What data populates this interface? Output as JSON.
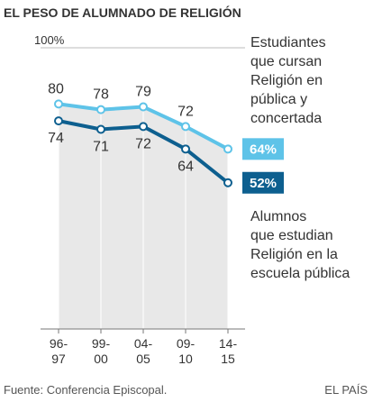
{
  "chart_data": {
    "type": "line",
    "title": "EL PESO DE ALUMNADO DE RELIGIÓN",
    "categories": [
      "96-\n97",
      "99-\n00",
      "04-\n05",
      "09-\n10",
      "14-\n15"
    ],
    "series": [
      {
        "name": "Estudiantes\nque cursan\nReligión en\npública y\nconcertada",
        "color": "#5ec3e8",
        "values": [
          80,
          78,
          79,
          72,
          64
        ],
        "value_labels": [
          "80",
          "78",
          "79",
          "72",
          "64%"
        ]
      },
      {
        "name": "Alumnos\nque estudian\nReligión en la\nescuela pública",
        "color": "#0d5f8f",
        "values": [
          74,
          71,
          72,
          64,
          52
        ],
        "value_labels": [
          "74",
          "71",
          "72",
          "64",
          "52%"
        ]
      }
    ],
    "ylim": [
      0,
      100
    ],
    "yticks": [
      {
        "value": 100,
        "label": "100%"
      }
    ],
    "source": "Fuente: Conferencia Episcopal.",
    "brand": "EL PAÍS"
  }
}
